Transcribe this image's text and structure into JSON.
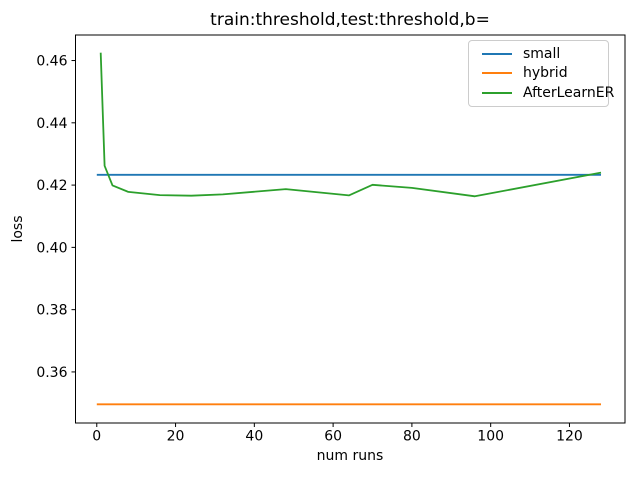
{
  "figure": {
    "background": "#ffffff",
    "axes_color": "#000000",
    "text_color": "#000000"
  },
  "legend": {
    "position": "upper-right",
    "border_color": "#cccccc",
    "entries": [
      "small",
      "hybrid",
      "AfterLearnER"
    ]
  },
  "chart_data": {
    "type": "line",
    "title": "train:threshold,test:threshold,b=",
    "xlabel": "num runs",
    "ylabel": "loss",
    "xlim": [
      -5.4,
      134.1
    ],
    "ylim": [
      0.3436,
      0.4682
    ],
    "x_ticks": [
      0,
      20,
      40,
      60,
      80,
      100,
      120
    ],
    "y_ticks": [
      0.36,
      0.38,
      0.4,
      0.42,
      0.44,
      0.46
    ],
    "grid": false,
    "legend_position": "upper right",
    "series": [
      {
        "name": "small",
        "color": "#1f77b4",
        "x": [
          0,
          128
        ],
        "y": [
          0.4233,
          0.4233
        ]
      },
      {
        "name": "hybrid",
        "color": "#ff7f0e",
        "x": [
          0,
          128
        ],
        "y": [
          0.3496,
          0.3496
        ]
      },
      {
        "name": "AfterLearnER",
        "color": "#2ca02c",
        "x": [
          1,
          2,
          4,
          8,
          16,
          24,
          32,
          48,
          64,
          70,
          80,
          96,
          128
        ],
        "y": [
          0.4625,
          0.4262,
          0.4199,
          0.4178,
          0.4168,
          0.4166,
          0.417,
          0.4187,
          0.4167,
          0.4201,
          0.4191,
          0.4164,
          0.424
        ]
      }
    ]
  }
}
